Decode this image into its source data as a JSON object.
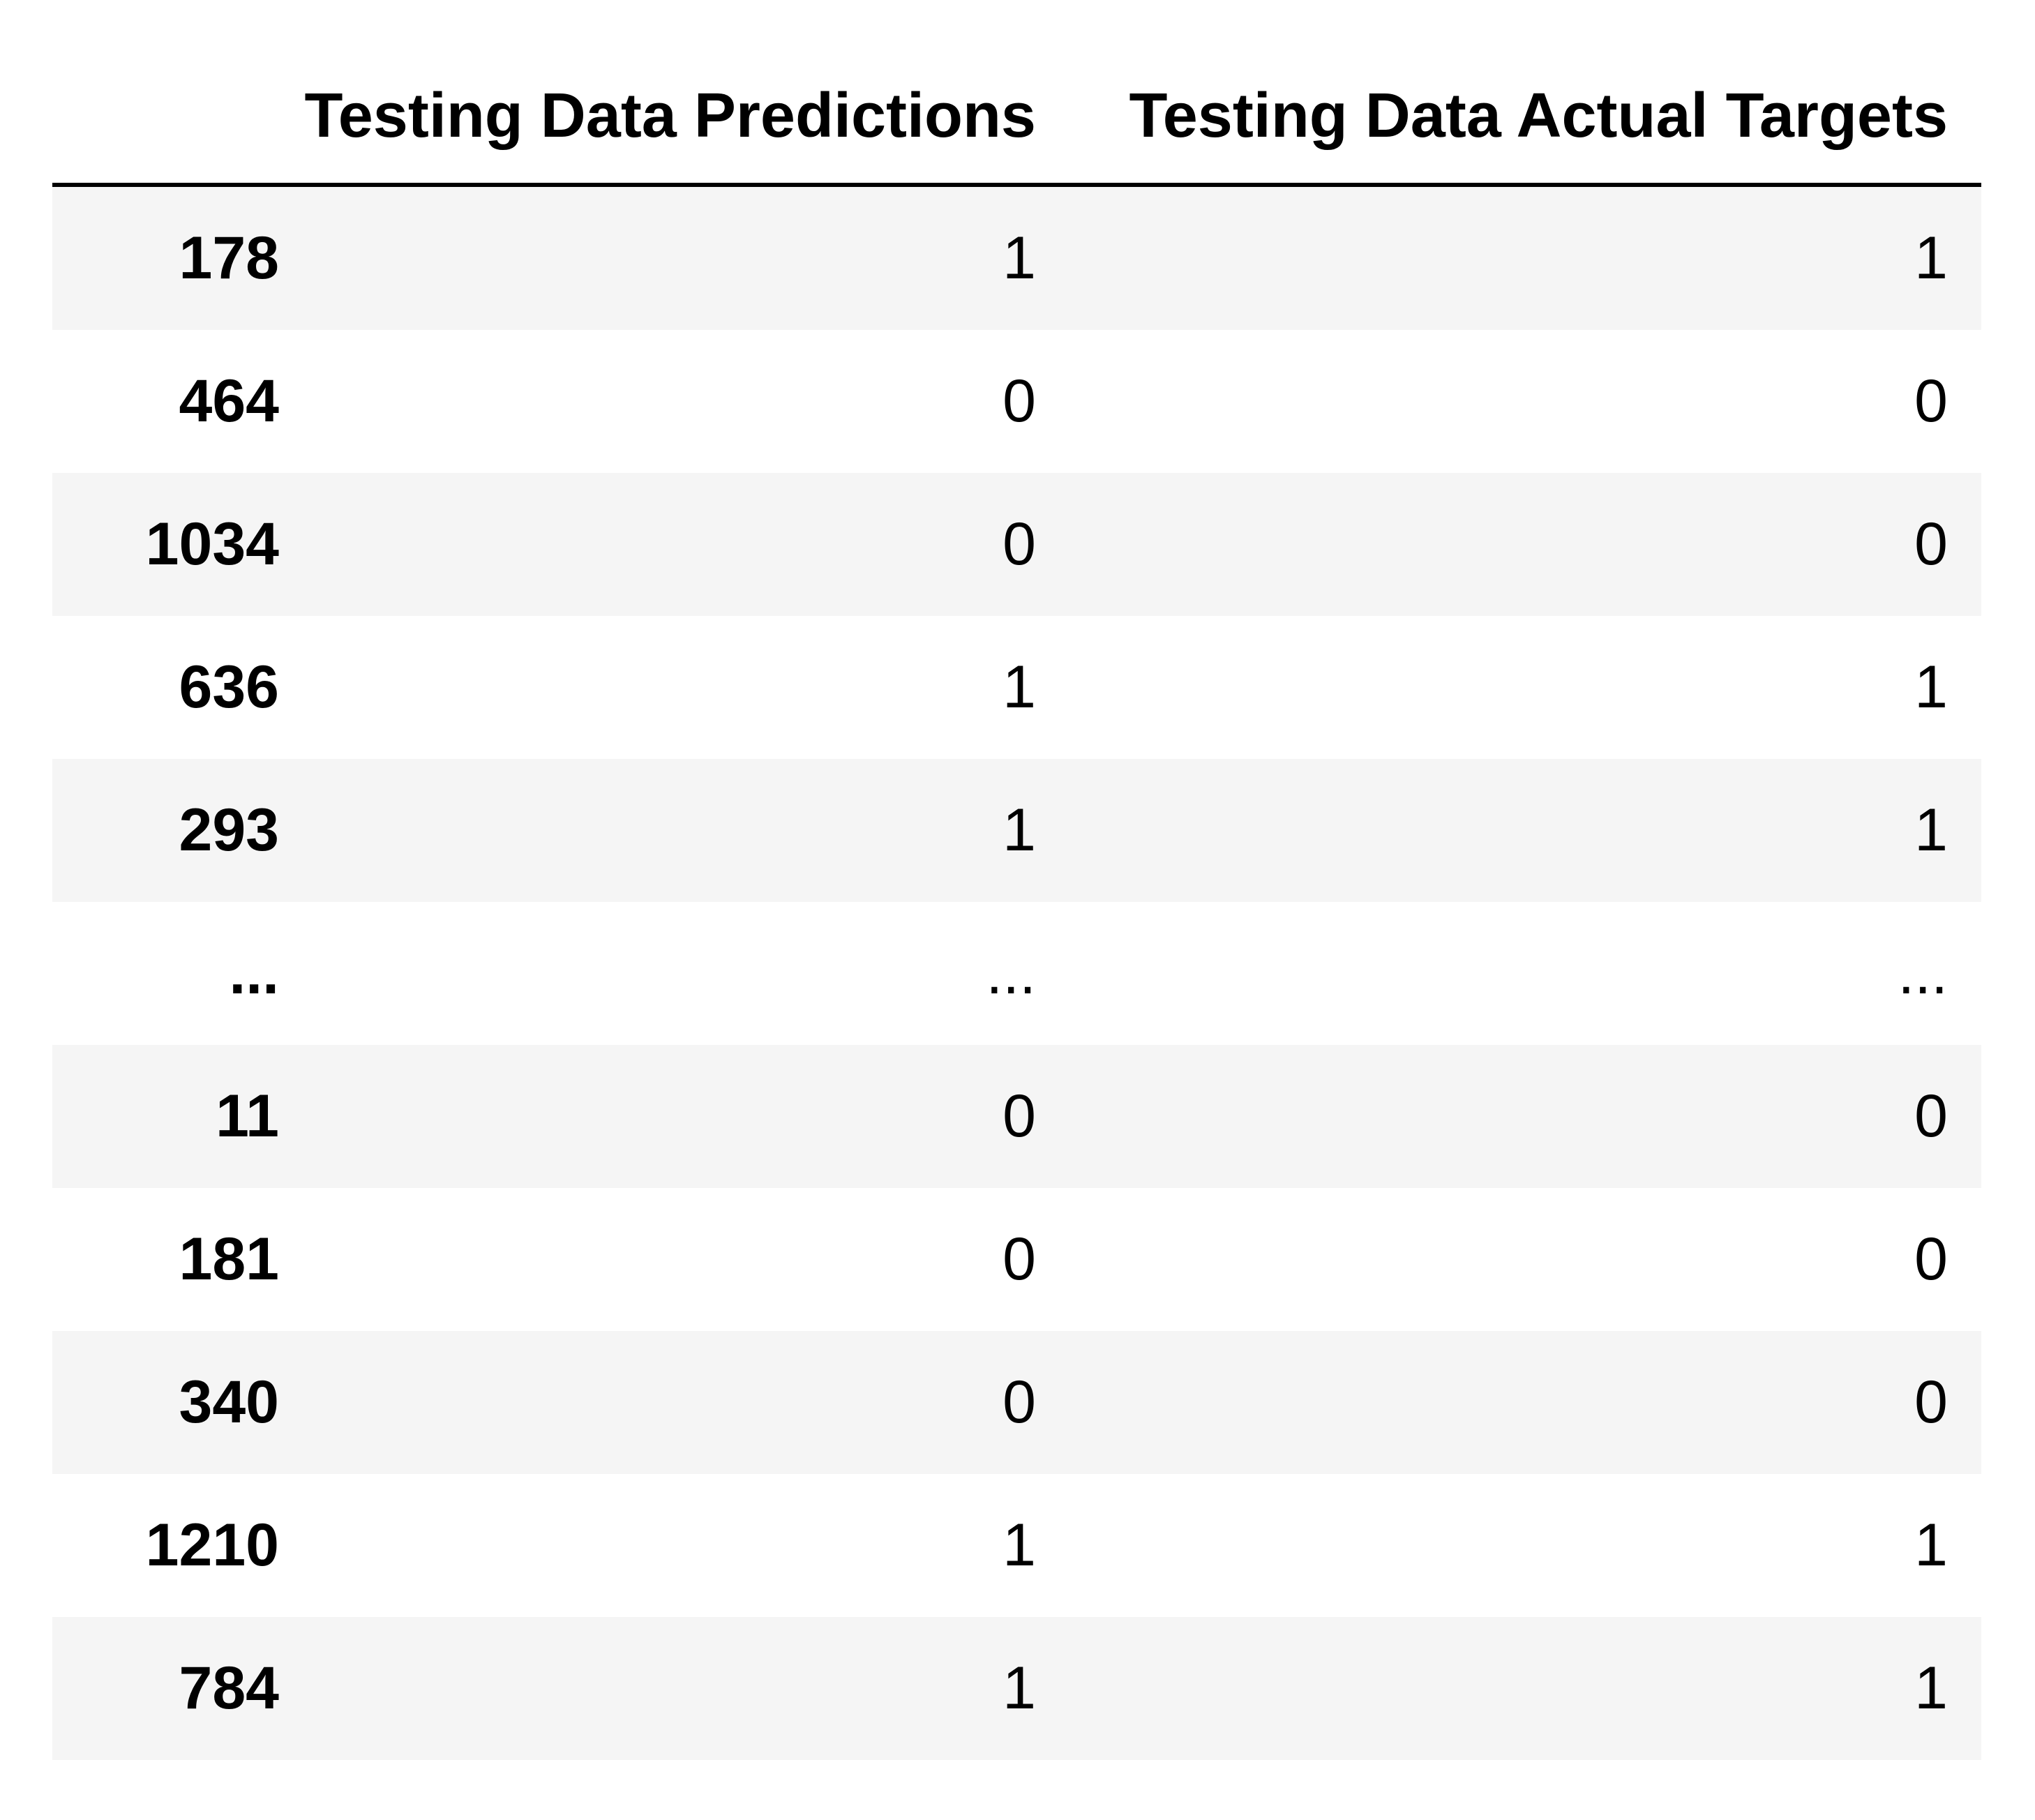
{
  "table": {
    "columns": [
      "Testing Data Predictions",
      "Testing Data Actual Targets"
    ],
    "rows": [
      {
        "index": "178",
        "prediction": "1",
        "actual": "1"
      },
      {
        "index": "464",
        "prediction": "0",
        "actual": "0"
      },
      {
        "index": "1034",
        "prediction": "0",
        "actual": "0"
      },
      {
        "index": "636",
        "prediction": "1",
        "actual": "1"
      },
      {
        "index": "293",
        "prediction": "1",
        "actual": "1"
      },
      {
        "index": "...",
        "prediction": "...",
        "actual": "..."
      },
      {
        "index": "11",
        "prediction": "0",
        "actual": "0"
      },
      {
        "index": "181",
        "prediction": "0",
        "actual": "0"
      },
      {
        "index": "340",
        "prediction": "0",
        "actual": "0"
      },
      {
        "index": "1210",
        "prediction": "1",
        "actual": "1"
      },
      {
        "index": "784",
        "prediction": "1",
        "actual": "1"
      }
    ]
  }
}
